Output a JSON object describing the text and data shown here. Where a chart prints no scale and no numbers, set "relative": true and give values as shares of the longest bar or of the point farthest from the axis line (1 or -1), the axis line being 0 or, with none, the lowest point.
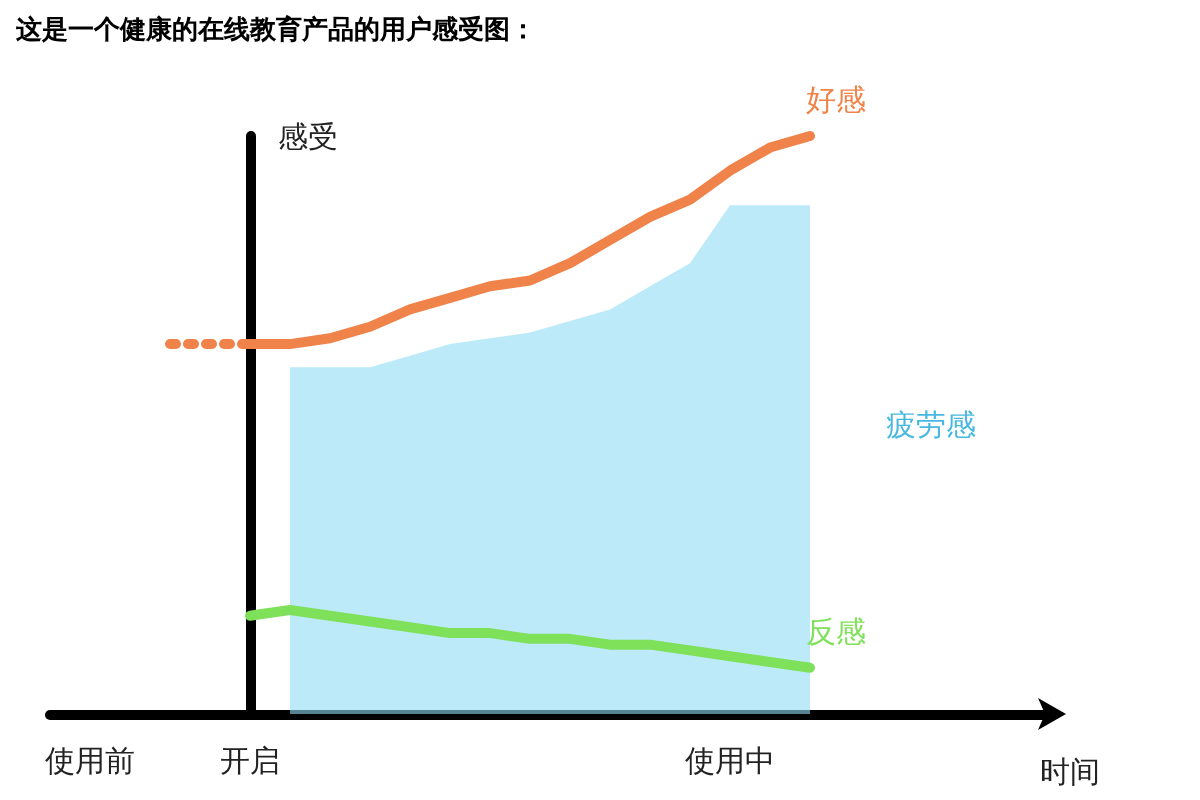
{
  "chart_data": {
    "type": "line",
    "relative": true,
    "title": "这是一个健康的在线教育产品的用户感受图：",
    "xlabel": "时间",
    "ylabel": "感受",
    "categories": [
      null,
      "使用前",
      null,
      null,
      null,
      "开启",
      null,
      null,
      null,
      null,
      null,
      null,
      null,
      null,
      null,
      null,
      null,
      "使用中",
      null,
      null,
      null,
      null,
      null,
      null,
      null,
      null
    ],
    "series": [
      {
        "color": "#f0834a",
        "line_style": "dotted",
        "values": [
          null,
          null,
          null,
          0.64,
          0.64,
          0.64,
          null,
          null,
          null,
          null,
          null,
          null,
          null,
          null,
          null,
          null,
          null,
          null,
          null,
          null,
          null,
          null,
          null,
          null,
          null,
          null
        ]
      },
      {
        "name": "好感",
        "color": "#f0834a",
        "line_style": "solid",
        "values": [
          null,
          null,
          null,
          null,
          null,
          0.64,
          0.64,
          0.65,
          0.67,
          0.7,
          0.72,
          0.74,
          0.75,
          0.78,
          0.82,
          0.86,
          0.89,
          0.94,
          0.98,
          1,
          null,
          null,
          null,
          null,
          null,
          null
        ]
      },
      {
        "name": "疲劳感",
        "type": "area",
        "color": "#8fdcf5",
        "values": [
          null,
          null,
          null,
          null,
          null,
          null,
          0.6,
          0.6,
          0.6,
          0.62,
          0.64,
          0.65,
          0.66,
          0.68,
          0.7,
          0.74,
          0.78,
          0.88,
          0.88,
          0.88,
          null,
          null,
          null,
          null,
          null,
          null
        ]
      },
      {
        "name": "反感",
        "color": "#7fe05a",
        "line_style": "solid",
        "values": [
          null,
          null,
          null,
          null,
          null,
          0.17,
          0.18,
          0.17,
          0.16,
          0.15,
          0.14,
          0.14,
          0.13,
          0.13,
          0.12,
          0.12,
          0.11,
          0.1,
          0.09,
          0.08,
          null,
          null,
          null,
          null,
          null,
          null
        ]
      }
    ]
  }
}
